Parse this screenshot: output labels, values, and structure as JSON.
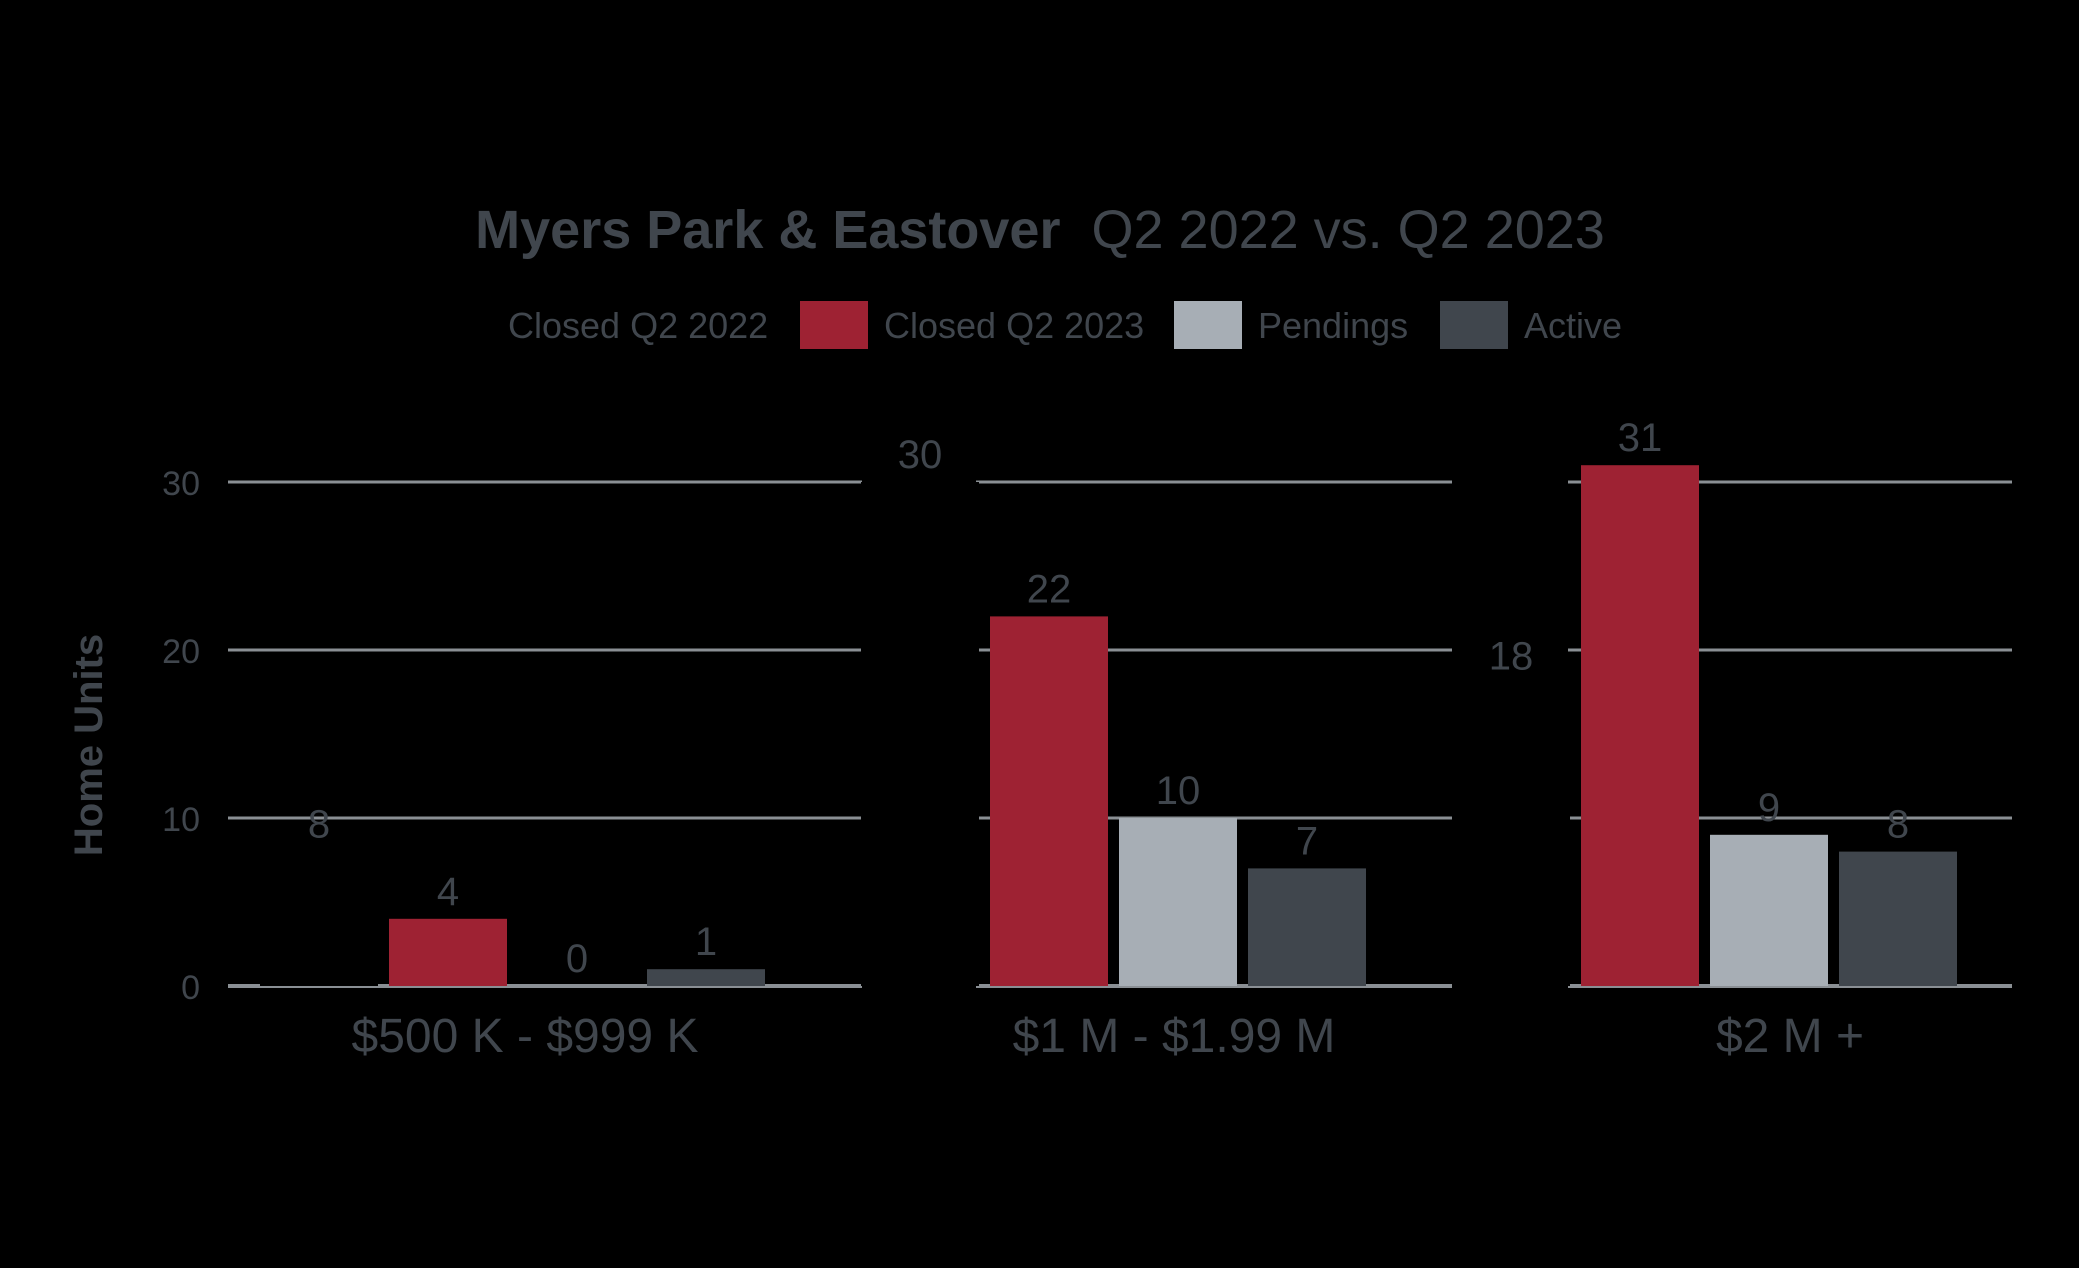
{
  "chart_data": {
    "type": "bar",
    "title_bold": "Myers Park & Eastover",
    "title_rest": "Q2 2022 vs. Q2 2023",
    "ylabel": "Home Units",
    "xlabel": "",
    "ylim": [
      0,
      30
    ],
    "yticks": [
      "0",
      "10",
      "20",
      "30"
    ],
    "grid": true,
    "legend_position": "top",
    "categories": [
      "$500 K - $999 K",
      "$1 M - $1.99 M",
      "$2 M +"
    ],
    "series": [
      {
        "name": "Closed Q2 2022",
        "color": "#000000",
        "values": [
          8,
          30,
          18
        ]
      },
      {
        "name": "Closed Q2 2023",
        "color": "#9e2233",
        "values": [
          4,
          22,
          31
        ]
      },
      {
        "name": "Pendings",
        "color": "#a7aeb5",
        "values": [
          0,
          10,
          9
        ]
      },
      {
        "name": "Active",
        "color": "#40464d",
        "values": [
          1,
          7,
          8
        ]
      }
    ],
    "colors": {
      "text": "#40464d",
      "grid": "#8a8f94",
      "background": "#000000"
    }
  }
}
